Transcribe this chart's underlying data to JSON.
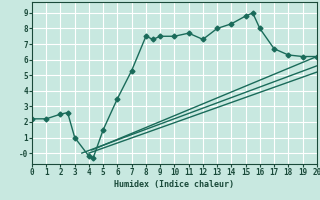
{
  "xlabel": "Humidex (Indice chaleur)",
  "xlim": [
    0,
    20
  ],
  "ylim": [
    -0.7,
    9.7
  ],
  "xticks": [
    0,
    1,
    2,
    3,
    4,
    5,
    6,
    7,
    8,
    9,
    10,
    11,
    12,
    13,
    14,
    15,
    16,
    17,
    18,
    19,
    20
  ],
  "yticks": [
    0,
    1,
    2,
    3,
    4,
    5,
    6,
    7,
    8,
    9
  ],
  "ytick_labels": [
    "-0",
    "1",
    "2",
    "3",
    "4",
    "5",
    "6",
    "7",
    "8",
    "9"
  ],
  "bg_color": "#c8e8e0",
  "grid_color": "#ffffff",
  "line_color": "#1a6b5a",
  "curve1_x": [
    0,
    1,
    2,
    2.5,
    3,
    4,
    4.3,
    5,
    6,
    7,
    8,
    8.5,
    9,
    10,
    11,
    12,
    13,
    14,
    15,
    15.5,
    16,
    17,
    18,
    19,
    20
  ],
  "curve1_y": [
    2.2,
    2.2,
    2.5,
    2.6,
    1.0,
    -0.2,
    -0.3,
    1.5,
    3.5,
    5.3,
    7.5,
    7.3,
    7.5,
    7.5,
    7.7,
    7.3,
    8.0,
    8.3,
    8.8,
    9.0,
    8.0,
    6.7,
    6.3,
    6.2,
    6.2
  ],
  "line2_x": [
    3.5,
    20
  ],
  "line2_y": [
    0.0,
    5.6
  ],
  "line3_x": [
    4.0,
    20
  ],
  "line3_y": [
    0.0,
    5.2
  ],
  "line4_x": [
    4.2,
    20
  ],
  "line4_y": [
    0.2,
    6.2
  ],
  "marker": "D",
  "markersize": 2.5,
  "linewidth": 1.0
}
